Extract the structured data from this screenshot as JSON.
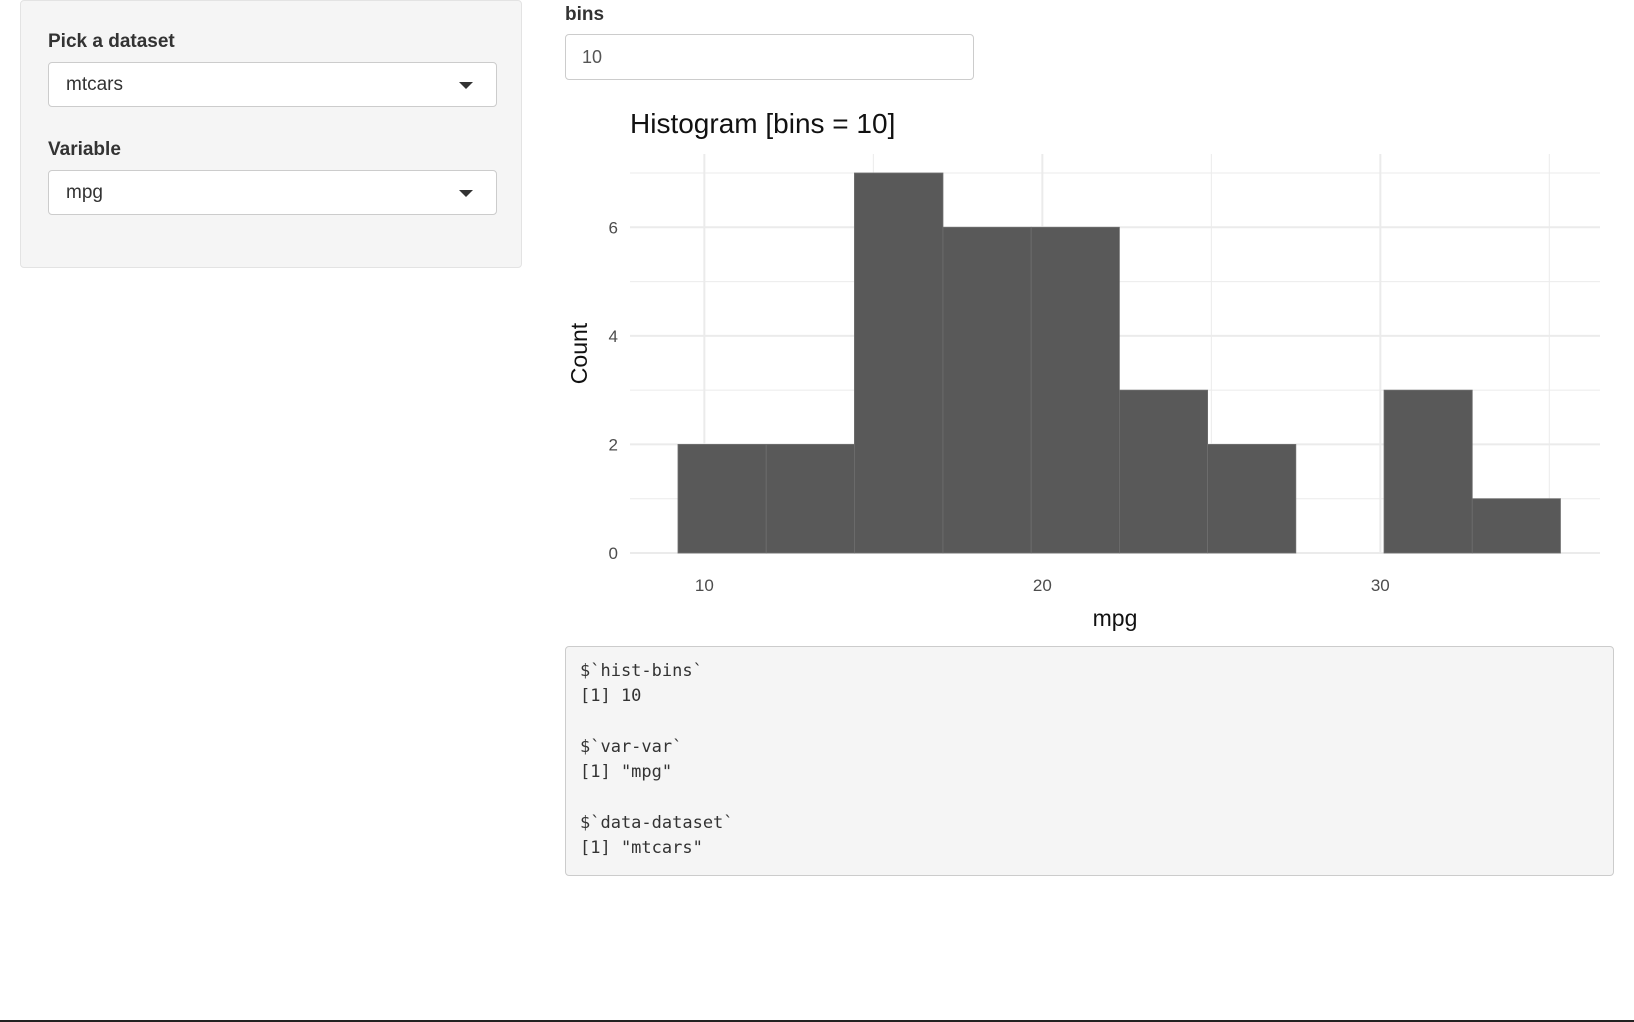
{
  "sidebar": {
    "dataset_label": "Pick a dataset",
    "dataset_value": "mtcars",
    "variable_label": "Variable",
    "variable_value": "mpg"
  },
  "bins_input": {
    "label": "bins",
    "value": "10"
  },
  "chart_data": {
    "type": "bar",
    "title": "Histogram [bins = 10]",
    "xlabel": "mpg",
    "ylabel": "Count",
    "bins": [
      {
        "x0": 9.22,
        "x1": 11.83,
        "count": 2
      },
      {
        "x0": 11.83,
        "x1": 14.44,
        "count": 2
      },
      {
        "x0": 14.44,
        "x1": 17.06,
        "count": 7
      },
      {
        "x0": 17.06,
        "x1": 19.67,
        "count": 6
      },
      {
        "x0": 19.67,
        "x1": 22.28,
        "count": 6
      },
      {
        "x0": 22.28,
        "x1": 24.89,
        "count": 3
      },
      {
        "x0": 24.89,
        "x1": 27.5,
        "count": 2
      },
      {
        "x0": 27.5,
        "x1": 30.11,
        "count": 0
      },
      {
        "x0": 30.11,
        "x1": 32.72,
        "count": 3
      },
      {
        "x0": 32.72,
        "x1": 35.33,
        "count": 1
      }
    ],
    "x_ticks": [
      10,
      20,
      30
    ],
    "y_ticks": [
      0,
      2,
      4,
      6
    ],
    "xlim": [
      7.8,
      36.5
    ],
    "ylim": [
      0,
      7.35
    ],
    "grid": true,
    "bar_color": "#595959",
    "grid_color": "#ebebeb"
  },
  "output": {
    "lines": [
      "$`hist-bins`",
      "[1] 10",
      "",
      "$`var-var`",
      "[1] \"mpg\"",
      "",
      "$`data-dataset`",
      "[1] \"mtcars\""
    ]
  }
}
